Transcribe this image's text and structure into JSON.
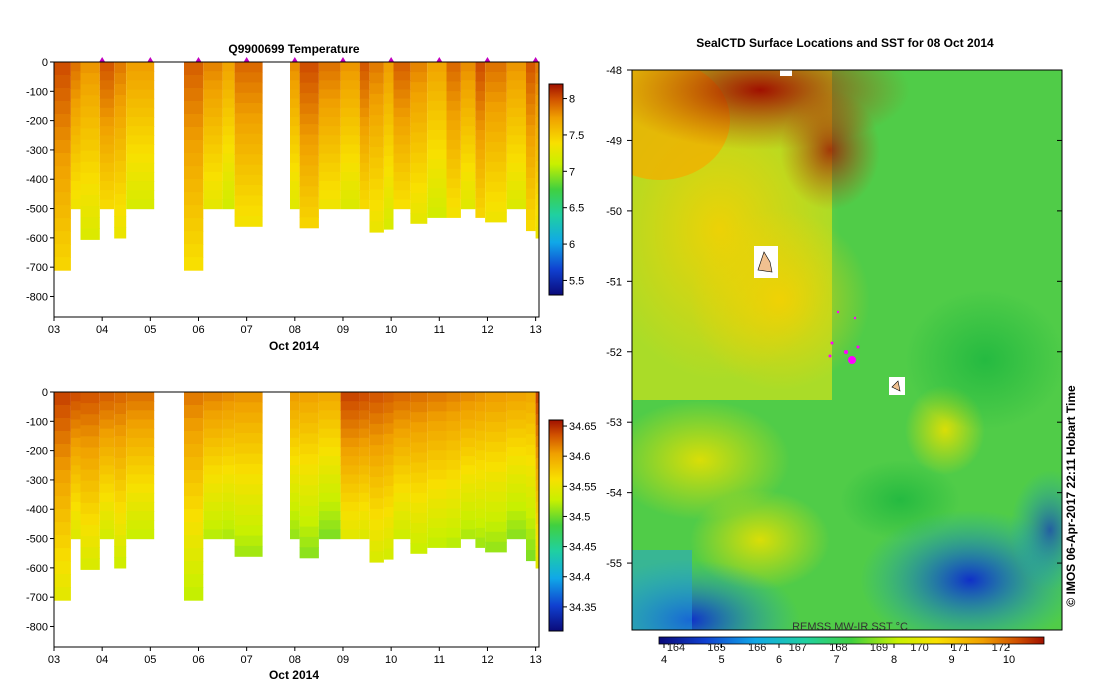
{
  "chart_data": [
    {
      "type": "heatmap",
      "title": "Q9900699  Temperature",
      "xlabel": "Oct 2014",
      "x_ticks": [
        "03",
        "04",
        "05",
        "06",
        "07",
        "08",
        "09",
        "10",
        "11",
        "12",
        "13"
      ],
      "y_ticks": [
        "0",
        "-100",
        "-200",
        "-300",
        "-400",
        "-500",
        "-600",
        "-700",
        "-800"
      ],
      "ylim": [
        -870,
        0
      ],
      "colorbar": {
        "min": 5.3,
        "max": 8.2,
        "ticks": [
          "5.5",
          "6",
          "6.5",
          "7",
          "7.5",
          "8"
        ]
      },
      "profiles": [
        {
          "day": 3.0,
          "bottom": -710
        },
        {
          "day": 3.35,
          "bottom": -500
        },
        {
          "day": 3.55,
          "bottom": -605
        },
        {
          "day": 3.95,
          "bottom": -500
        },
        {
          "day": 4.25,
          "bottom": -600
        },
        {
          "day": 4.5,
          "bottom": -500
        },
        {
          "day": 5.7,
          "bottom": -710
        },
        {
          "day": 6.1,
          "bottom": -500
        },
        {
          "day": 6.5,
          "bottom": -500
        },
        {
          "day": 6.75,
          "bottom": -560
        },
        {
          "day": 7.9,
          "bottom": -500
        },
        {
          "day": 8.1,
          "bottom": -565
        },
        {
          "day": 8.5,
          "bottom": -500
        },
        {
          "day": 8.95,
          "bottom": -500
        },
        {
          "day": 9.35,
          "bottom": -500
        },
        {
          "day": 9.55,
          "bottom": -580
        },
        {
          "day": 9.85,
          "bottom": -570
        },
        {
          "day": 10.05,
          "bottom": -500
        },
        {
          "day": 10.4,
          "bottom": -550
        },
        {
          "day": 10.75,
          "bottom": -530
        },
        {
          "day": 11.15,
          "bottom": -530
        },
        {
          "day": 11.45,
          "bottom": -500
        },
        {
          "day": 11.75,
          "bottom": -530
        },
        {
          "day": 11.95,
          "bottom": -545
        },
        {
          "day": 12.4,
          "bottom": -500
        },
        {
          "day": 12.8,
          "bottom": -575
        },
        {
          "day": 13.0,
          "bottom": -600
        }
      ]
    },
    {
      "type": "heatmap",
      "title": "",
      "xlabel": "Oct 2014",
      "x_ticks": [
        "03",
        "04",
        "05",
        "06",
        "07",
        "08",
        "09",
        "10",
        "11",
        "12",
        "13"
      ],
      "y_ticks": [
        "0",
        "-100",
        "-200",
        "-300",
        "-400",
        "-500",
        "-600",
        "-700",
        "-800"
      ],
      "ylim": [
        -870,
        0
      ],
      "colorbar": {
        "min": 34.31,
        "max": 34.66,
        "ticks": [
          "34.35",
          "34.4",
          "34.45",
          "34.5",
          "34.55",
          "34.6",
          "34.65"
        ]
      }
    },
    {
      "type": "heatmap",
      "title": "SealCTD Surface Locations and SST for 08 Oct 2014",
      "y_ticks": [
        "-48",
        "-49",
        "-50",
        "-51",
        "-52",
        "-53",
        "-54",
        "-55"
      ],
      "ylim": [
        -55.95,
        -48
      ],
      "colorbar": {
        "label": "REMSS MW-IR SST °C",
        "ticks_celsius": [
          "4",
          "5",
          "6",
          "7",
          "8",
          "9",
          "10"
        ],
        "ticks_longitude": [
          "164",
          "165",
          "166",
          "167",
          "168",
          "169",
          "170",
          "171",
          "172"
        ]
      },
      "annotation": "© IMOS 06-Apr-2017 22:11 Hobart Time"
    }
  ]
}
